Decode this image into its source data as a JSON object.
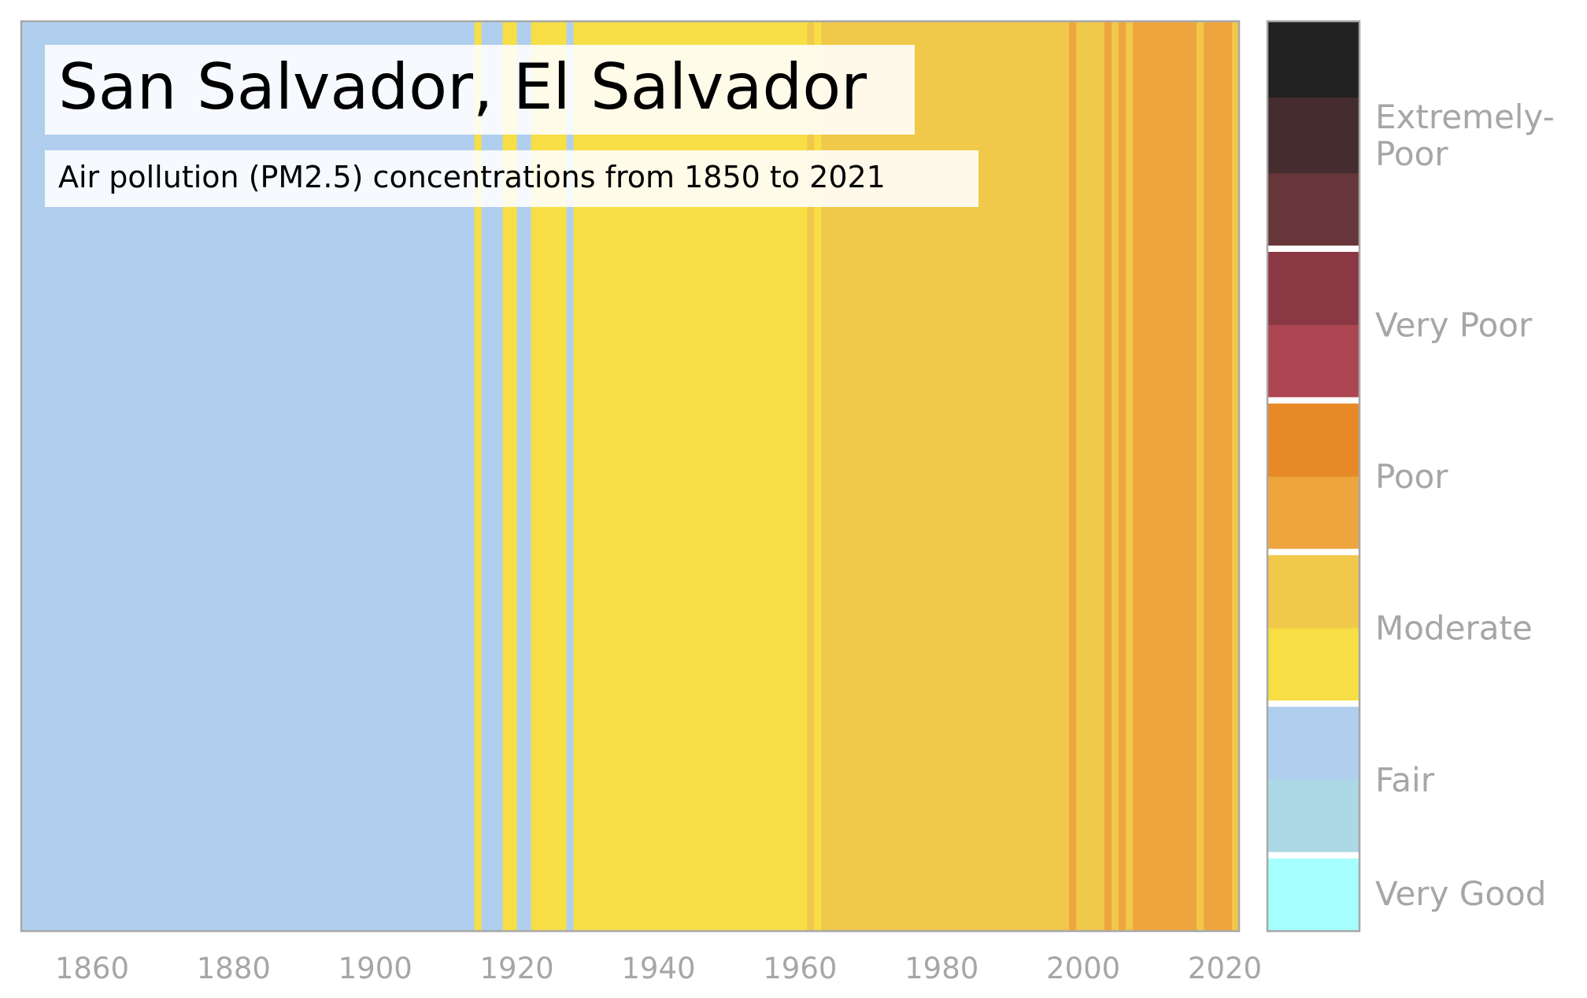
{
  "chart_data": {
    "type": "heatmap",
    "title": "San Salvador, El Salvador",
    "subtitle": "Air pollution (PM2.5) concentrations from 1850 to 2021",
    "xlim": [
      1850,
      2022
    ],
    "x_ticks": [
      "1860",
      "1880",
      "1900",
      "1920",
      "1940",
      "1960",
      "1980",
      "2000",
      "2020"
    ],
    "grid": false,
    "legend_position": "right",
    "colors": {
      "very_good": "#a6ffff",
      "fair_light": "#add8e6",
      "fair": "#b0cfee",
      "moderate_light": "#f7df45",
      "moderate": "#f0c84a",
      "poor_light": "#efa53e",
      "poor": "#e78926",
      "very_poor_light": "#ad4552",
      "very_poor": "#8a3844",
      "extremely_poor_light": "#67363a",
      "extremely_poor_mid": "#452c2e",
      "extremely_poor": "#222222"
    },
    "stripes": [
      {
        "start": 1850,
        "end": 1913,
        "color": "#b0cfee"
      },
      {
        "start": 1914,
        "end": 1914,
        "color": "#f7df45"
      },
      {
        "start": 1915,
        "end": 1917,
        "color": "#b0cfee"
      },
      {
        "start": 1918,
        "end": 1919,
        "color": "#f7df45"
      },
      {
        "start": 1920,
        "end": 1921,
        "color": "#b0cfee"
      },
      {
        "start": 1922,
        "end": 1926,
        "color": "#f7df45"
      },
      {
        "start": 1927,
        "end": 1927,
        "color": "#b0cfee"
      },
      {
        "start": 1928,
        "end": 1960,
        "color": "#f7df45"
      },
      {
        "start": 1961,
        "end": 1961,
        "color": "#f0c84a"
      },
      {
        "start": 1962,
        "end": 1962,
        "color": "#f7df45"
      },
      {
        "start": 1963,
        "end": 1997,
        "color": "#f0c84a"
      },
      {
        "start": 1998,
        "end": 1998,
        "color": "#efa53e"
      },
      {
        "start": 1999,
        "end": 2002,
        "color": "#f0c84a"
      },
      {
        "start": 2003,
        "end": 2003,
        "color": "#efa53e"
      },
      {
        "start": 2004,
        "end": 2004,
        "color": "#f0c84a"
      },
      {
        "start": 2005,
        "end": 2005,
        "color": "#efa53e"
      },
      {
        "start": 2006,
        "end": 2006,
        "color": "#f0c84a"
      },
      {
        "start": 2007,
        "end": 2015,
        "color": "#efa53e"
      },
      {
        "start": 2016,
        "end": 2016,
        "color": "#f0c84a"
      },
      {
        "start": 2017,
        "end": 2020,
        "color": "#efa53e"
      },
      {
        "start": 2021,
        "end": 2021,
        "color": "#f0c84a"
      }
    ],
    "colorbar": {
      "segments": [
        {
          "level": 0,
          "color": "#a6ffff"
        },
        {
          "level": 1,
          "color": "#add8e6"
        },
        {
          "level": 2,
          "color": "#b0cfee"
        },
        {
          "level": 3,
          "color": "#f7df45"
        },
        {
          "level": 4,
          "color": "#f0c84a"
        },
        {
          "level": 5,
          "color": "#efa53e"
        },
        {
          "level": 6,
          "color": "#e78926"
        },
        {
          "level": 7,
          "color": "#ad4552"
        },
        {
          "level": 8,
          "color": "#8a3844"
        },
        {
          "level": 9,
          "color": "#67363a"
        },
        {
          "level": 10,
          "color": "#452c2e"
        },
        {
          "level": 11,
          "color": "#222222"
        }
      ],
      "separator_after_levels": [
        0,
        2,
        4,
        6,
        8
      ],
      "categories": [
        {
          "label": "Very Good",
          "level_from": 0,
          "level_to": 1
        },
        {
          "label": "Fair",
          "level_from": 1,
          "level_to": 3
        },
        {
          "label": "Moderate",
          "level_from": 3,
          "level_to": 5
        },
        {
          "label": "Poor",
          "level_from": 5,
          "level_to": 7
        },
        {
          "label": "Very Poor",
          "level_from": 7,
          "level_to": 9
        },
        {
          "label": "Extremely-\nPoor",
          "level_from": 9,
          "level_to": 12
        }
      ]
    }
  }
}
